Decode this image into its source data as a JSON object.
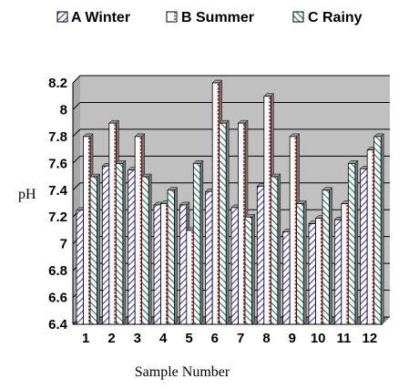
{
  "chart_data": {
    "type": "bar",
    "categories": [
      "1",
      "2",
      "3",
      "4",
      "5",
      "6",
      "7",
      "8",
      "9",
      "10",
      "11",
      "12"
    ],
    "series": [
      {
        "name": "A Winter",
        "values": [
          7.25,
          7.58,
          7.55,
          7.29,
          7.29,
          7.39,
          7.27,
          7.43,
          7.09,
          7.15,
          7.18,
          7.56
        ]
      },
      {
        "name": "B Summer",
        "values": [
          7.8,
          7.9,
          7.8,
          7.3,
          7.1,
          8.2,
          7.9,
          8.1,
          7.8,
          7.19,
          7.3,
          7.7
        ]
      },
      {
        "name": "C Rainy",
        "values": [
          7.5,
          7.6,
          7.5,
          7.4,
          7.6,
          7.9,
          7.2,
          7.5,
          7.3,
          7.4,
          7.6,
          7.8
        ]
      }
    ],
    "xlabel": "Sample Number",
    "ylabel": "pH",
    "ylim": [
      6.4,
      8.2
    ],
    "yticks": [
      "6.4",
      "6.6",
      "6.8",
      "7",
      "7.2",
      "7.4",
      "7.6",
      "7.8",
      "8",
      "8.2"
    ],
    "grid": true,
    "legend_position": "top",
    "colors": {
      "winter": "#6a5acd",
      "summer": "#cc2222",
      "rainy": "#2e8b7a",
      "plot_background": "#c0c0c0"
    }
  }
}
